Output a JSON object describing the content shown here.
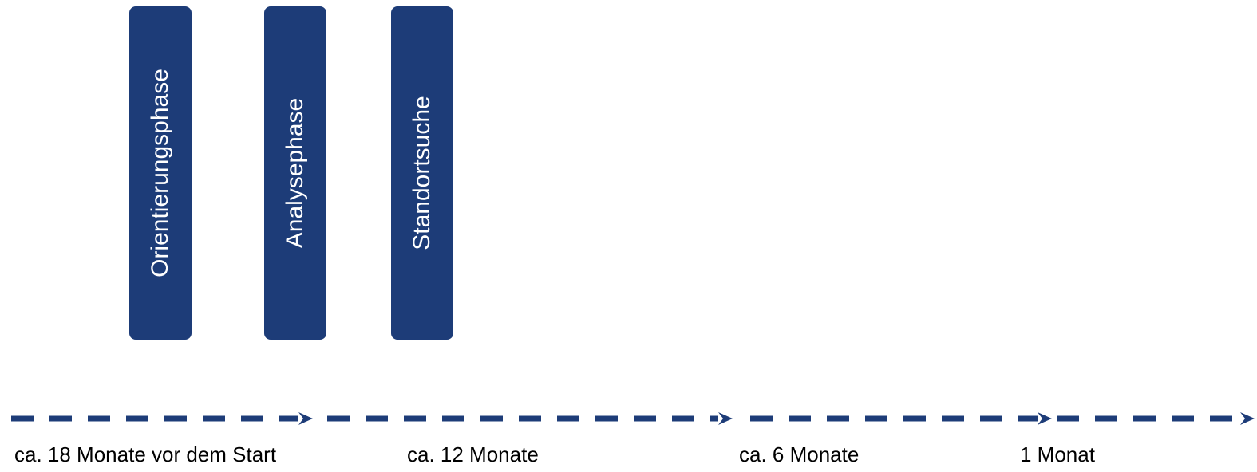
{
  "phases": [
    {
      "label": "Orientierungsphase"
    },
    {
      "label": "Analysephase"
    },
    {
      "label": "Standortsuche"
    }
  ],
  "timeline": {
    "labels": [
      "ca. 18 Monate vor dem Start",
      "ca. 12 Monate",
      "ca. 6 Monate",
      "1 Monat"
    ]
  },
  "colors": {
    "primary": "#1d3c78",
    "text": "#000000",
    "background": "#ffffff"
  }
}
